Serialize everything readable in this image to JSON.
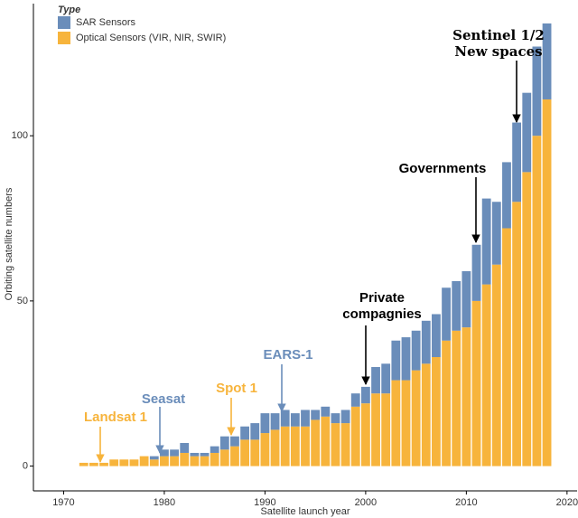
{
  "chart_data": {
    "type": "stacked_bar",
    "x_label": "Satellite launch year",
    "y_label": "Orbiting satellite numbers",
    "legend_title": "Type",
    "x": [
      1972,
      1973,
      1974,
      1975,
      1976,
      1977,
      1978,
      1979,
      1980,
      1981,
      1982,
      1983,
      1984,
      1985,
      1986,
      1987,
      1988,
      1989,
      1990,
      1991,
      1992,
      1993,
      1994,
      1995,
      1996,
      1997,
      1998,
      1999,
      2000,
      2001,
      2002,
      2003,
      2004,
      2005,
      2006,
      2007,
      2008,
      2009,
      2010,
      2011,
      2012,
      2013,
      2014,
      2015,
      2016,
      2017,
      2018
    ],
    "series": [
      {
        "name": "Optical Sensors (VIR, NIR, SWIR)",
        "color": "#f7b43c",
        "values": [
          1,
          1,
          1,
          2,
          2,
          2,
          3,
          2,
          3,
          3,
          4,
          3,
          3,
          4,
          5,
          6,
          8,
          8,
          10,
          11,
          12,
          12,
          12,
          14,
          15,
          13,
          13,
          18,
          19,
          22,
          22,
          26,
          26,
          29,
          31,
          33,
          38,
          41,
          42,
          50,
          55,
          61,
          72,
          80,
          89,
          100,
          111
        ]
      },
      {
        "name": "SAR Sensors",
        "color": "#6a8dba",
        "values": [
          0,
          0,
          0,
          0,
          0,
          0,
          0,
          1,
          2,
          2,
          3,
          1,
          1,
          2,
          4,
          3,
          4,
          5,
          6,
          5,
          5,
          4,
          5,
          3,
          3,
          3,
          4,
          4,
          5,
          8,
          9,
          12,
          13,
          12,
          13,
          13,
          16,
          15,
          17,
          17,
          26,
          19,
          20,
          24,
          24,
          27,
          23
        ]
      }
    ],
    "xlim": [
      1967,
      2021
    ],
    "ylim": [
      -7.5,
      140
    ],
    "xticks": [
      1970,
      1980,
      1990,
      2000,
      2010,
      2020
    ],
    "yticks": [
      0,
      50,
      100
    ],
    "annotations": [
      {
        "lines": [
          "Landsat 1"
        ],
        "color": "#f7b43c"
      },
      {
        "lines": [
          "Seasat"
        ],
        "color": "#6a8dba"
      },
      {
        "lines": [
          "Spot 1"
        ],
        "color": "#f7b43c"
      },
      {
        "lines": [
          "EARS-1"
        ],
        "color": "#6a8dba"
      },
      {
        "lines": [
          "Private",
          "compagnies"
        ],
        "color": "#000000"
      },
      {
        "lines": [
          "Governments"
        ],
        "color": "#000000"
      },
      {
        "lines": [
          "Sentinel 1/2",
          "New spaces"
        ],
        "color": "#000000"
      }
    ]
  }
}
